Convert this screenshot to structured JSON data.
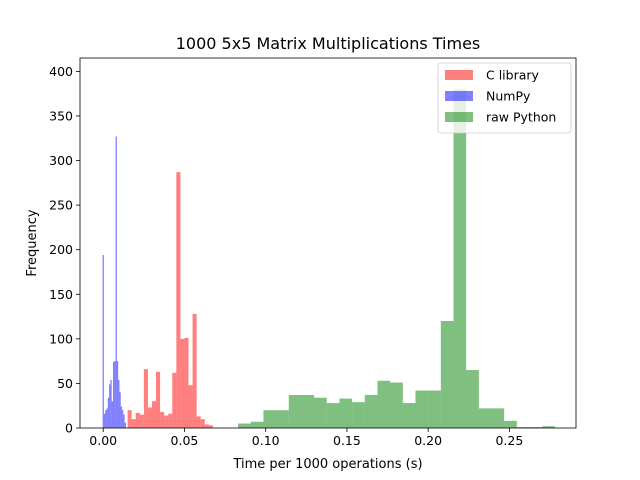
{
  "chart_data": {
    "type": "histogram",
    "title": "1000 5x5 Matrix Multiplications Times",
    "xlabel": "Time per 1000 operations (s)",
    "ylabel": "Frequency",
    "xlim": [
      -0.0143,
      0.291
    ],
    "ylim": [
      0,
      415
    ],
    "xticks": [
      0.0,
      0.05,
      0.1,
      0.15,
      0.2,
      0.25
    ],
    "xtick_labels": [
      "0.00",
      "0.05",
      "0.10",
      "0.15",
      "0.20",
      "0.25"
    ],
    "yticks": [
      0,
      50,
      100,
      150,
      200,
      250,
      300,
      350,
      400
    ],
    "ytick_labels": [
      "0",
      "50",
      "100",
      "150",
      "200",
      "250",
      "300",
      "350",
      "400"
    ],
    "legend_position": "upper right",
    "series": [
      {
        "name": "raw Python",
        "color": "#008000",
        "alpha": 0.5,
        "bins": [
          {
            "x0": 0.083,
            "x1": 0.0908,
            "count": 5
          },
          {
            "x0": 0.0908,
            "x1": 0.0986,
            "count": 7
          },
          {
            "x0": 0.0986,
            "x1": 0.1064,
            "count": 20
          },
          {
            "x0": 0.1064,
            "x1": 0.1142,
            "count": 20
          },
          {
            "x0": 0.1142,
            "x1": 0.122,
            "count": 37
          },
          {
            "x0": 0.122,
            "x1": 0.1298,
            "count": 37
          },
          {
            "x0": 0.1298,
            "x1": 0.1376,
            "count": 34
          },
          {
            "x0": 0.1376,
            "x1": 0.1454,
            "count": 28
          },
          {
            "x0": 0.1454,
            "x1": 0.1532,
            "count": 33
          },
          {
            "x0": 0.1532,
            "x1": 0.161,
            "count": 29
          },
          {
            "x0": 0.161,
            "x1": 0.1688,
            "count": 37
          },
          {
            "x0": 0.1688,
            "x1": 0.1766,
            "count": 53
          },
          {
            "x0": 0.1766,
            "x1": 0.1844,
            "count": 51
          },
          {
            "x0": 0.1844,
            "x1": 0.1922,
            "count": 28
          },
          {
            "x0": 0.1922,
            "x1": 0.2,
            "count": 42
          },
          {
            "x0": 0.2,
            "x1": 0.2078,
            "count": 42
          },
          {
            "x0": 0.2078,
            "x1": 0.2156,
            "count": 120
          },
          {
            "x0": 0.2156,
            "x1": 0.2234,
            "count": 380
          },
          {
            "x0": 0.2234,
            "x1": 0.2312,
            "count": 65
          },
          {
            "x0": 0.2312,
            "x1": 0.239,
            "count": 22
          },
          {
            "x0": 0.239,
            "x1": 0.2468,
            "count": 22
          },
          {
            "x0": 0.2468,
            "x1": 0.2546,
            "count": 8
          },
          {
            "x0": 0.2546,
            "x1": 0.2624,
            "count": 1
          },
          {
            "x0": 0.2624,
            "x1": 0.2702,
            "count": 1
          },
          {
            "x0": 0.2702,
            "x1": 0.278,
            "count": 2
          }
        ]
      },
      {
        "name": "C library",
        "color": "#ff0000",
        "alpha": 0.5,
        "bins": [
          {
            "x0": 0.015,
            "x1": 0.0175,
            "count": 20
          },
          {
            "x0": 0.0175,
            "x1": 0.02,
            "count": 10
          },
          {
            "x0": 0.02,
            "x1": 0.0225,
            "count": 17
          },
          {
            "x0": 0.0225,
            "x1": 0.025,
            "count": 15
          },
          {
            "x0": 0.025,
            "x1": 0.0275,
            "count": 66
          },
          {
            "x0": 0.0275,
            "x1": 0.03,
            "count": 23
          },
          {
            "x0": 0.03,
            "x1": 0.0325,
            "count": 30
          },
          {
            "x0": 0.0325,
            "x1": 0.035,
            "count": 63
          },
          {
            "x0": 0.035,
            "x1": 0.0375,
            "count": 18
          },
          {
            "x0": 0.0375,
            "x1": 0.04,
            "count": 14
          },
          {
            "x0": 0.04,
            "x1": 0.0425,
            "count": 16
          },
          {
            "x0": 0.0425,
            "x1": 0.045,
            "count": 62
          },
          {
            "x0": 0.045,
            "x1": 0.0475,
            "count": 287
          },
          {
            "x0": 0.0475,
            "x1": 0.05,
            "count": 100
          },
          {
            "x0": 0.05,
            "x1": 0.0525,
            "count": 101
          },
          {
            "x0": 0.0525,
            "x1": 0.055,
            "count": 48
          },
          {
            "x0": 0.055,
            "x1": 0.0575,
            "count": 128
          },
          {
            "x0": 0.0575,
            "x1": 0.06,
            "count": 13
          },
          {
            "x0": 0.06,
            "x1": 0.0625,
            "count": 10
          },
          {
            "x0": 0.0625,
            "x1": 0.065,
            "count": 4
          },
          {
            "x0": 0.065,
            "x1": 0.0675,
            "count": 3
          }
        ]
      },
      {
        "name": "NumPy",
        "color": "#0000ff",
        "alpha": 0.5,
        "bins": [
          {
            "x0": -0.0004,
            "x1": 0.0004,
            "count": 194
          },
          {
            "x0": 0.0004,
            "x1": 0.0012,
            "count": 16
          },
          {
            "x0": 0.0012,
            "x1": 0.002,
            "count": 20
          },
          {
            "x0": 0.002,
            "x1": 0.0028,
            "count": 22
          },
          {
            "x0": 0.0028,
            "x1": 0.0036,
            "count": 34
          },
          {
            "x0": 0.0036,
            "x1": 0.0044,
            "count": 49
          },
          {
            "x0": 0.0044,
            "x1": 0.0052,
            "count": 54
          },
          {
            "x0": 0.0052,
            "x1": 0.006,
            "count": 30
          },
          {
            "x0": 0.006,
            "x1": 0.0068,
            "count": 74
          },
          {
            "x0": 0.0068,
            "x1": 0.0076,
            "count": 75
          },
          {
            "x0": 0.0076,
            "x1": 0.0084,
            "count": 327
          },
          {
            "x0": 0.0084,
            "x1": 0.0092,
            "count": 75
          },
          {
            "x0": 0.0092,
            "x1": 0.01,
            "count": 54
          },
          {
            "x0": 0.01,
            "x1": 0.0108,
            "count": 40
          },
          {
            "x0": 0.0108,
            "x1": 0.0116,
            "count": 24
          },
          {
            "x0": 0.0116,
            "x1": 0.0124,
            "count": 20
          },
          {
            "x0": 0.0124,
            "x1": 0.0132,
            "count": 15
          },
          {
            "x0": 0.0132,
            "x1": 0.014,
            "count": 6
          }
        ]
      }
    ],
    "legend_order": [
      "C library",
      "NumPy",
      "raw Python"
    ]
  }
}
